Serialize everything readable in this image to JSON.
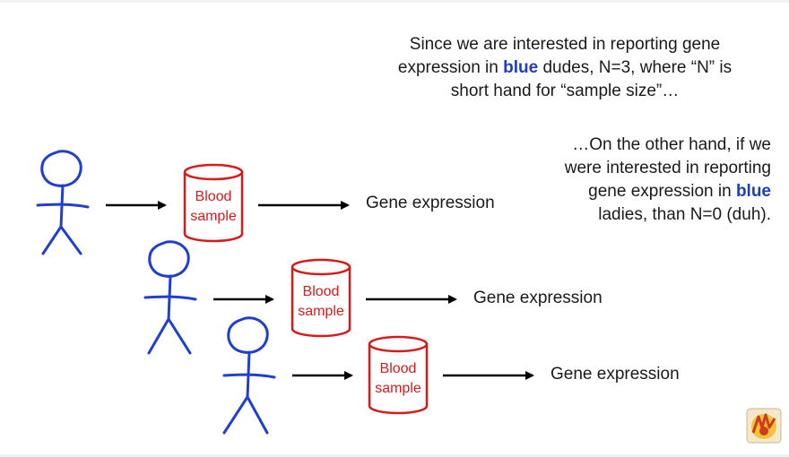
{
  "top_text": {
    "line1": "Since we are interested in reporting gene",
    "line2_pre": "expression in ",
    "line2_blue": "blue",
    "line2_post": " dudes, N=3, where “N” is",
    "line3": "short hand for “sample size”…"
  },
  "right_text": {
    "line1": "…On the other hand, if we",
    "line2": "were interested in reporting",
    "line3_pre": "gene expression in ",
    "line3_blue": "blue",
    "line4": "ladies, than N=0 (duh)."
  },
  "rows": [
    {
      "sample_line1": "Blood",
      "sample_line2": "sample",
      "output": "Gene expression"
    },
    {
      "sample_line1": "Blood",
      "sample_line2": "sample",
      "output": "Gene expression"
    },
    {
      "sample_line1": "Blood",
      "sample_line2": "sample",
      "output": "Gene expression"
    }
  ],
  "colors": {
    "stick_figure": "#1f3fd0",
    "blood_sample": "#d81a1a",
    "emphasis_blue": "#1f3fb8",
    "arrow": "#000000"
  },
  "icons": {
    "person": "stick-figure-icon",
    "sample": "blood-sample-cylinder-icon",
    "arrow": "right-arrow-icon",
    "logo": "statquest-logo-icon"
  }
}
